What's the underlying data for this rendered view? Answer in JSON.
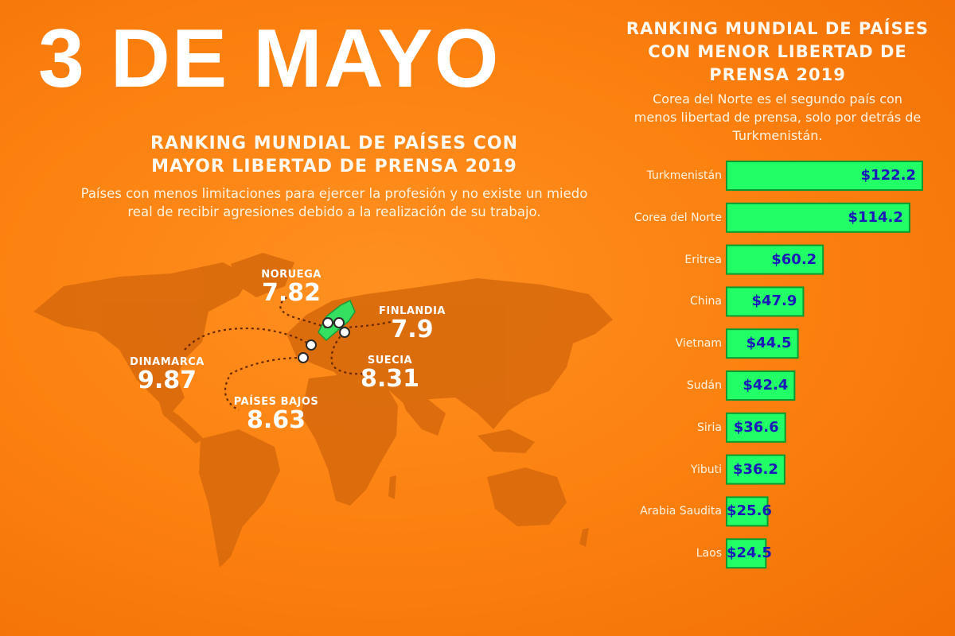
{
  "title": "3 DE MAYO",
  "left_section": {
    "heading_line1": "RANKING MUNDIAL DE PAÍSES CON",
    "heading_line2": "MAYOR LIBERTAD DE PRENSA 2019",
    "subtitle_line1": "Países con menos limitaciones para ejercer la profesión y no existe un miedo",
    "subtitle_line2": "real de recibir agresiones debido a la realización de su trabajo.",
    "countries": [
      {
        "name": "NORUEGA",
        "score": "7.82"
      },
      {
        "name": "FINLANDIA",
        "score": "7.9"
      },
      {
        "name": "DINAMARCA",
        "score": "9.87"
      },
      {
        "name": "SUECIA",
        "score": "8.31"
      },
      {
        "name": "PAÍSES BAJOS",
        "score": "8.63"
      }
    ]
  },
  "right_section": {
    "heading_line1": "RANKING MUNDIAL DE PAÍSES",
    "heading_line2": "CON MENOR LIBERTAD DE",
    "heading_line3": "PRENSA 2019",
    "subtitle_line1": "Corea del Norte es el segundo país con",
    "subtitle_line2": "menos libertad de prensa, solo por detrás de",
    "subtitle_line3": "Turkmenistán."
  },
  "colors": {
    "background": "#fb7f0e",
    "land": "#d96a0c",
    "bar_fill": "#22ff66",
    "bar_border": "#0a9a30",
    "value_text": "#1a1ab8",
    "highlight": "#35e060"
  },
  "chart_data": {
    "type": "bar",
    "orientation": "horizontal",
    "categories": [
      "Turkmenistán",
      "Corea del Norte",
      "Eritrea",
      "China",
      "Vietnam",
      "Sudán",
      "Siria",
      "Yibuti",
      "Arabia Saudita",
      "Laos"
    ],
    "values": [
      122.2,
      114.2,
      60.2,
      47.9,
      44.5,
      42.4,
      36.6,
      36.2,
      25.6,
      24.5
    ],
    "value_labels": [
      "$122.2",
      "$114.2",
      "$60.2",
      "$47.9",
      "$44.5",
      "$42.4",
      "$36.6",
      "$36.2",
      "$25.6",
      "$24.5"
    ]
  }
}
